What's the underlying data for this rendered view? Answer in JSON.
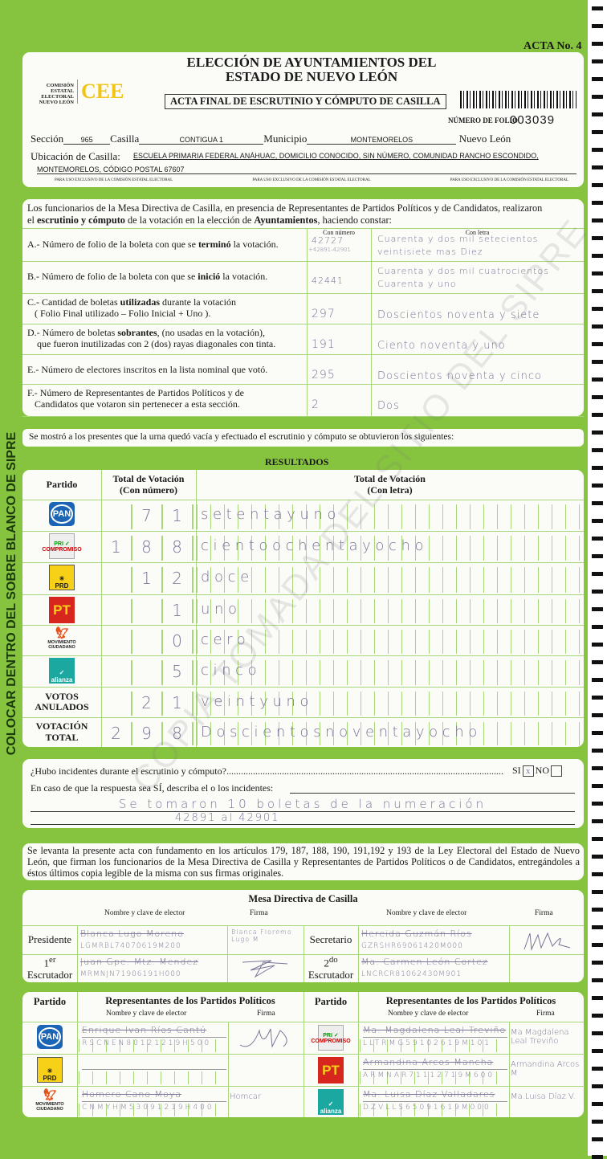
{
  "acta_no": "ACTA No. 4",
  "side_text": "COLOCAR DENTRO DEL SOBRE BLANCO DE SIPRE",
  "watermark": "COPIA TOMADA DEL SITIO DEL SIPRE",
  "colors": {
    "background": "#86c440",
    "panel": "#fbfcf8",
    "brand": "#f2c418",
    "ink": "#7b7396"
  },
  "header": {
    "title_line1": "ELECCIÓN DE AYUNTAMIENTOS DEL",
    "title_line2": "ESTADO DE NUEVO LEÓN",
    "org_lines": [
      "COMISIÓN",
      "ESTATAL",
      "ELECTORAL",
      "NUEVO LEÓN"
    ],
    "logo": "CEE",
    "subtitle": "ACTA FINAL DE ESCRUTINIO Y CÓMPUTO DE CASILLA",
    "folio_label": "NÚMERO DE FOLIO",
    "folio": "003039",
    "seccion_label": "Sección",
    "seccion": "965",
    "casilla_label": "Casilla",
    "casilla": "CONTIGUA 1",
    "municipio_label": "Municipio",
    "municipio": "MONTEMORELOS",
    "estado": "Nuevo León",
    "ubicacion_label": "Ubicación de Casilla:",
    "ubicacion_1": "ESCUELA PRIMARIA FEDERAL ANÁHUAC, DOMICILIO CONOCIDO, SIN NÚMERO, COMUNIDAD RANCHO ESCONDIDO,",
    "ubicacion_2": "MONTEMORELOS, CÓDIGO POSTAL 67607",
    "uso_exclusivo": "PARA USO EXCLUSIVO DE LA COMISIÓN ESTATAL ELECTORAL"
  },
  "intro": {
    "t1": "Los funcionarios de la Mesa Directiva de Casilla, en presencia de Representantes de Partidos Políticos  y de Candidatos, realizaron",
    "t2a": "el ",
    "t2b": "escrutinio y cómputo",
    "t2c": " de la votación en la elección de ",
    "t2d": "Ayuntamientos",
    "t2e": ", haciendo constar:",
    "col_num": "Con número",
    "col_letra": "Con letra"
  },
  "items": [
    {
      "label": "A.- Número de folio de la boleta con que se <b>terminó</b> la votación.",
      "num": "42727",
      "num2": "+42891-42901",
      "letra": "Cuarenta y dos mil setecientos",
      "letra2": "veintisiete mas Diez"
    },
    {
      "label": "B.- Número de folio de la boleta con que se <b>inició</b> la votación.",
      "num": "42441",
      "num2": "",
      "letra": "Cuarenta y dos mil cuatrocientos",
      "letra2": "Cuarenta y uno"
    },
    {
      "label": "C.- Cantidad de boletas <b>utilizadas</b> durante la votación<br>&nbsp;&nbsp;&nbsp;( Folio Final utilizado – Folio Inicial + Uno ).",
      "num": "297",
      "num2": "",
      "letra": "Doscientos noventa y siete",
      "letra2": ""
    },
    {
      "label": "D.- Número de boletas <b>sobrantes</b>, (no usadas en la votación),<br>&nbsp;&nbsp;&nbsp;&nbsp;que fueron inutilizadas con 2 (dos) rayas diagonales con tinta.",
      "num": "191",
      "num2": "",
      "letra": "Ciento noventa y uno",
      "letra2": ""
    },
    {
      "label": "E.- Número de electores inscritos en la lista nominal que votó.",
      "num": "295",
      "num2": "",
      "letra": "Doscientos noventa y cinco",
      "letra2": ""
    },
    {
      "label": "F.- Número de Representantes de Partidos Políticos y de<br>&nbsp;&nbsp;&nbsp;Candidatos que votaron sin pertenecer a esta sección.",
      "num": "2",
      "num2": "",
      "letra": "Dos",
      "letra2": ""
    }
  ],
  "shown_text": "Se mostró a los presentes que la urna quedó vacía y efectuado el escrutinio y cómputo se obtuvieron los siguientes:",
  "results": {
    "title": "RESULTADOS",
    "col_partido": "Partido",
    "col_num": "Total de Votación",
    "col_num_sub": "(Con número)",
    "col_letra": "Total de Votación",
    "col_letra_sub": "(Con letra)",
    "rows": [
      {
        "party": "PAN",
        "num": "71",
        "letra": "setentayuno"
      },
      {
        "party": "PRI COMPROMISO",
        "num": "188",
        "letra": "cientoochentayocho"
      },
      {
        "party": "PRD",
        "num": "12",
        "letra": "doce"
      },
      {
        "party": "PT",
        "num": "1",
        "letra": "uno"
      },
      {
        "party": "MOVIMIENTO CIUDADANO",
        "num": "0",
        "letra": "cero"
      },
      {
        "party": "alianza",
        "num": "5",
        "letra": "cinco"
      },
      {
        "party": "VOTOS ANULADOS",
        "num": "21",
        "letra": "veintyuno"
      },
      {
        "party": "VOTACIÓN TOTAL",
        "num": "298",
        "letra": "Doscientosnoventayocho"
      }
    ]
  },
  "incidents": {
    "question": "¿Hubo incidentes durante el escrutinio y cómputo?",
    "si": "SI",
    "si_mark": "x",
    "no": "NO",
    "describe": "En caso de que la respuesta sea SÍ, describa el o los incidentes:",
    "line1": "Se tomaron 10 boletas de la numeración",
    "line2": "42891 al 42901"
  },
  "legal": "Se levanta la presente acta con fundamento en los artículos 179, 187, 188, 190, 191,192 y 193 de la Ley Electoral del Estado de Nuevo León, que firman los funcionarios de la Mesa Directiva de Casilla y Representantes de  Partidos Políticos o de Candidatos, entregándoles a éstos últimos copia legible de la misma con sus firmas originales.",
  "mesa": {
    "title": "Mesa Directiva de Casilla",
    "col_name": "Nombre y clave de elector",
    "col_firma": "Firma",
    "presidente": {
      "role": "Presidente",
      "name": "Blanca Lugo Moreno",
      "clave": "LGMRBL74070619M200",
      "firma": "Blanca Floremo Lugo M"
    },
    "secretario": {
      "role": "Secretario",
      "name": "Hereida Guzmán Ríos",
      "clave": "GZRSHR69061420M000",
      "firma": ""
    },
    "escrutador1": {
      "role_sup": "er",
      "role_num": "1",
      "role": "Escrutador",
      "name": "Juan Gpe. Mtz. Mendez",
      "clave": "MRMNJN71906191H000",
      "firma": ""
    },
    "escrutador2": {
      "role_sup": "do",
      "role_num": "2",
      "role": "Escrutador",
      "name": "Ma. Carmen León Cortez",
      "clave": "LNCRCR81062430M901",
      "firma": ""
    }
  },
  "reps": {
    "col_partido": "Partido",
    "title": "Representantes de los Partidos Políticos",
    "col_name": "Nombre y clave de elector",
    "col_firma": "Firma",
    "left": [
      {
        "party": "PAN",
        "name": "Enrique Ivan Ríos Cantú",
        "clave": "RSCNEN80121219H500",
        "firma": ""
      },
      {
        "party": "PRD",
        "name": "",
        "clave": "",
        "firma": ""
      },
      {
        "party": "MOVIMIENTO CIUDADANO",
        "name": "Homero Cano Moya",
        "clave": "CNMYHM53091219H400",
        "firma": "Homcar"
      }
    ],
    "right": [
      {
        "party": "PRI COMPROMISO",
        "name": "Ma. Magdalena Leal Treviño",
        "clave": "LLTRMG59102619M101",
        "firma": "Ma Magdalena Leal Treviño"
      },
      {
        "party": "PT",
        "name": "Armandina Arcos Mancha",
        "clave": "ARMNAR71112719M600",
        "firma": "Armandina Arcos M"
      },
      {
        "party": "alianza",
        "name": "Ma. Luisa Díaz Valladares",
        "clave": "DZVLLS65091619M000",
        "firma": "Ma.Luisa Díaz V."
      }
    ]
  }
}
